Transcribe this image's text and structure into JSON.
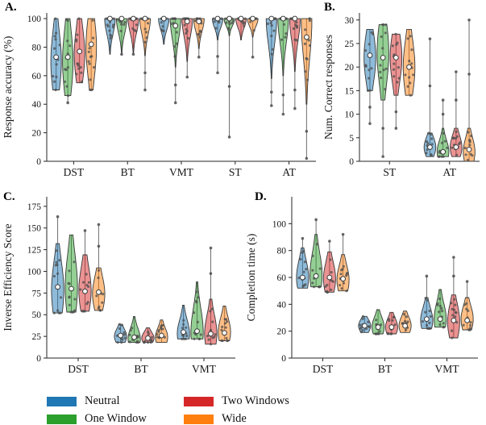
{
  "figure": {
    "background": "#ffffff",
    "legend": {
      "position": "bottom-left",
      "items": [
        {
          "label": "Neutral",
          "color": "#1f77b4"
        },
        {
          "label": "One Window",
          "color": "#2ca02c"
        },
        {
          "label": "Two Windows",
          "color": "#d62728"
        },
        {
          "label": "Wide",
          "color": "#ff7f0e"
        }
      ]
    },
    "point_color": "#4d4d4d",
    "median_marker": "white-circle"
  },
  "chart_data": [
    {
      "panel": "A.",
      "type": "violin",
      "ylabel": "Response accuracy (%)",
      "ylim": [
        0,
        104
      ],
      "yticks": [
        0,
        20,
        40,
        60,
        80,
        100
      ],
      "grid": false,
      "categories": [
        "DST",
        "BT",
        "VMT",
        "ST",
        "AT"
      ],
      "series": [
        {
          "name": "Neutral",
          "color": "#1f77b4",
          "violins": [
            {
              "min": 50,
              "max": 100,
              "median": 73,
              "body": [
                50,
                100
              ],
              "peak": 70
            },
            {
              "min": 75,
              "max": 100,
              "median": 100,
              "body": [
                75,
                100
              ],
              "peak": 100
            },
            {
              "min": 82,
              "max": 100,
              "median": 100,
              "body": [
                82,
                100
              ],
              "peak": 100
            },
            {
              "min": 62,
              "max": 100,
              "median": 100,
              "body": [
                85,
                100
              ],
              "peak": 100
            },
            {
              "min": 39,
              "max": 100,
              "median": 100,
              "body": [
                58,
                100
              ],
              "peak": 100
            }
          ]
        },
        {
          "name": "One Window",
          "color": "#2ca02c",
          "violins": [
            {
              "min": 41,
              "max": 100,
              "median": 73,
              "body": [
                46,
                100
              ],
              "peak": 70
            },
            {
              "min": 75,
              "max": 100,
              "median": 100,
              "body": [
                76,
                100
              ],
              "peak": 100
            },
            {
              "min": 41,
              "max": 100,
              "median": 95,
              "body": [
                66,
                100
              ],
              "peak": 100
            },
            {
              "min": 17,
              "max": 100,
              "median": 100,
              "body": [
                88,
                100
              ],
              "peak": 100
            },
            {
              "min": 33,
              "max": 100,
              "median": 100,
              "body": [
                60,
                100
              ],
              "peak": 100
            }
          ]
        },
        {
          "name": "Two Windows",
          "color": "#d62728",
          "violins": [
            {
              "min": 55,
              "max": 100,
              "median": 77,
              "body": [
                55,
                100
              ],
              "peak": 75
            },
            {
              "min": 75,
              "max": 100,
              "median": 100,
              "body": [
                76,
                100
              ],
              "peak": 100
            },
            {
              "min": 59,
              "max": 100,
              "median": 98,
              "body": [
                70,
                100
              ],
              "peak": 100
            },
            {
              "min": 85,
              "max": 100,
              "median": 100,
              "body": [
                85,
                100
              ],
              "peak": 100
            },
            {
              "min": 37,
              "max": 100,
              "median": 100,
              "body": [
                63,
                100
              ],
              "peak": 100
            }
          ]
        },
        {
          "name": "Wide",
          "color": "#ff7f0e",
          "violins": [
            {
              "min": 50,
              "max": 100,
              "median": 82,
              "body": [
                50,
                100
              ],
              "peak": 80
            },
            {
              "min": 50,
              "max": 100,
              "median": 100,
              "body": [
                74,
                100
              ],
              "peak": 100
            },
            {
              "min": 73,
              "max": 100,
              "median": 98,
              "body": [
                79,
                100
              ],
              "peak": 100
            },
            {
              "min": 73,
              "max": 100,
              "median": 100,
              "body": [
                87,
                100
              ],
              "peak": 100
            },
            {
              "min": 2,
              "max": 100,
              "median": 87,
              "body": [
                40,
                100
              ],
              "peak": 98
            }
          ]
        }
      ]
    },
    {
      "panel": "B.",
      "type": "violin",
      "ylabel": "Num. Correct responses",
      "ylim": [
        0,
        31.5
      ],
      "yticks": [
        0,
        5,
        10,
        15,
        20,
        25,
        30
      ],
      "grid": false,
      "categories": [
        "ST",
        "AT"
      ],
      "series": [
        {
          "name": "Neutral",
          "color": "#1f77b4",
          "violins": [
            {
              "min": 8,
              "max": 28,
              "median": 22.5,
              "body": [
                15,
                28
              ],
              "peak": 22
            },
            {
              "min": 1,
              "max": 26,
              "median": 3,
              "body": [
                1,
                6
              ],
              "peak": 3
            }
          ]
        },
        {
          "name": "One Window",
          "color": "#2ca02c",
          "violins": [
            {
              "min": 1,
              "max": 29,
              "median": 22,
              "body": [
                13,
                29
              ],
              "peak": 23
            },
            {
              "min": 1,
              "max": 13,
              "median": 2,
              "body": [
                1,
                7
              ],
              "peak": 2
            }
          ]
        },
        {
          "name": "Two Windows",
          "color": "#d62728",
          "violins": [
            {
              "min": 7,
              "max": 27,
              "median": 22,
              "body": [
                14,
                27
              ],
              "peak": 22
            },
            {
              "min": 1,
              "max": 19,
              "median": 3,
              "body": [
                1,
                7
              ],
              "peak": 3
            }
          ]
        },
        {
          "name": "Wide",
          "color": "#ff7f0e",
          "violins": [
            {
              "min": 14,
              "max": 28,
              "median": 20,
              "body": [
                14,
                28
              ],
              "peak": 20
            },
            {
              "min": 0,
              "max": 30,
              "median": 2.5,
              "body": [
                0,
                7
              ],
              "peak": 2
            }
          ]
        }
      ]
    },
    {
      "panel": "C.",
      "type": "violin",
      "ylabel": "Inverse Efficiency Score",
      "ylim": [
        0,
        186
      ],
      "yticks": [
        0,
        25,
        50,
        75,
        100,
        125,
        150,
        175
      ],
      "grid": false,
      "categories": [
        "DST",
        "BT",
        "VMT"
      ],
      "series": [
        {
          "name": "Neutral",
          "color": "#1f77b4",
          "violins": [
            {
              "min": 52,
              "max": 163,
              "median": 82,
              "body": [
                52,
                132
              ],
              "peak": 78
            },
            {
              "min": 18,
              "max": 39,
              "median": 26,
              "body": [
                18,
                39
              ],
              "peak": 25
            },
            {
              "min": 22,
              "max": 61,
              "median": 30,
              "body": [
                22,
                61
              ],
              "peak": 28
            }
          ]
        },
        {
          "name": "One Window",
          "color": "#2ca02c",
          "violins": [
            {
              "min": 53,
              "max": 142,
              "median": 80,
              "body": [
                53,
                142
              ],
              "peak": 82
            },
            {
              "min": 18,
              "max": 48,
              "median": 24,
              "body": [
                18,
                48
              ],
              "peak": 22
            },
            {
              "min": 22,
              "max": 88,
              "median": 31,
              "body": [
                22,
                88
              ],
              "peak": 30
            }
          ]
        },
        {
          "name": "Two Windows",
          "color": "#d62728",
          "violins": [
            {
              "min": 54,
              "max": 147,
              "median": 77,
              "body": [
                54,
                119
              ],
              "peak": 78
            },
            {
              "min": 18,
              "max": 35,
              "median": 23,
              "body": [
                18,
                35
              ],
              "peak": 23
            },
            {
              "min": 16,
              "max": 127,
              "median": 28,
              "body": [
                16,
                68
              ],
              "peak": 28
            }
          ]
        },
        {
          "name": "Wide",
          "color": "#ff7f0e",
          "violins": [
            {
              "min": 55,
              "max": 154,
              "median": 76,
              "body": [
                55,
                104
              ],
              "peak": 74
            },
            {
              "min": 18,
              "max": 44,
              "median": 26,
              "body": [
                18,
                44
              ],
              "peak": 24
            },
            {
              "min": 20,
              "max": 60,
              "median": 29,
              "body": [
                20,
                60
              ],
              "peak": 30
            }
          ]
        }
      ]
    },
    {
      "panel": "D.",
      "type": "violin",
      "ylabel": "Completion time (s)",
      "ylim": [
        0,
        120
      ],
      "yticks": [
        0,
        20,
        40,
        60,
        80,
        100
      ],
      "grid": false,
      "categories": [
        "DST",
        "BT",
        "VMT"
      ],
      "series": [
        {
          "name": "Neutral",
          "color": "#1f77b4",
          "violins": [
            {
              "min": 52,
              "max": 89,
              "median": 60,
              "body": [
                52,
                82
              ],
              "peak": 60
            },
            {
              "min": 19,
              "max": 31,
              "median": 24,
              "body": [
                19,
                31
              ],
              "peak": 24
            },
            {
              "min": 22,
              "max": 61,
              "median": 29,
              "body": [
                22,
                45
              ],
              "peak": 28
            }
          ]
        },
        {
          "name": "One Window",
          "color": "#2ca02c",
          "violins": [
            {
              "min": 53,
              "max": 103,
              "median": 61,
              "body": [
                53,
                92
              ],
              "peak": 62
            },
            {
              "min": 18,
              "max": 36,
              "median": 23,
              "body": [
                18,
                36
              ],
              "peak": 23
            },
            {
              "min": 23,
              "max": 51,
              "median": 29,
              "body": [
                23,
                51
              ],
              "peak": 29
            }
          ]
        },
        {
          "name": "Two Windows",
          "color": "#d62728",
          "violins": [
            {
              "min": 49,
              "max": 87,
              "median": 60,
              "body": [
                49,
                79
              ],
              "peak": 59
            },
            {
              "min": 18,
              "max": 34,
              "median": 23,
              "body": [
                18,
                34
              ],
              "peak": 23
            },
            {
              "min": 15,
              "max": 75,
              "median": 28,
              "body": [
                15,
                47
              ],
              "peak": 27
            }
          ]
        },
        {
          "name": "Wide",
          "color": "#ff7f0e",
          "violins": [
            {
              "min": 50,
              "max": 92,
              "median": 59,
              "body": [
                50,
                77
              ],
              "peak": 58
            },
            {
              "min": 19,
              "max": 35,
              "median": 24,
              "body": [
                19,
                35
              ],
              "peak": 24
            },
            {
              "min": 21,
              "max": 57,
              "median": 28,
              "body": [
                21,
                45
              ],
              "peak": 29
            }
          ]
        }
      ]
    }
  ]
}
